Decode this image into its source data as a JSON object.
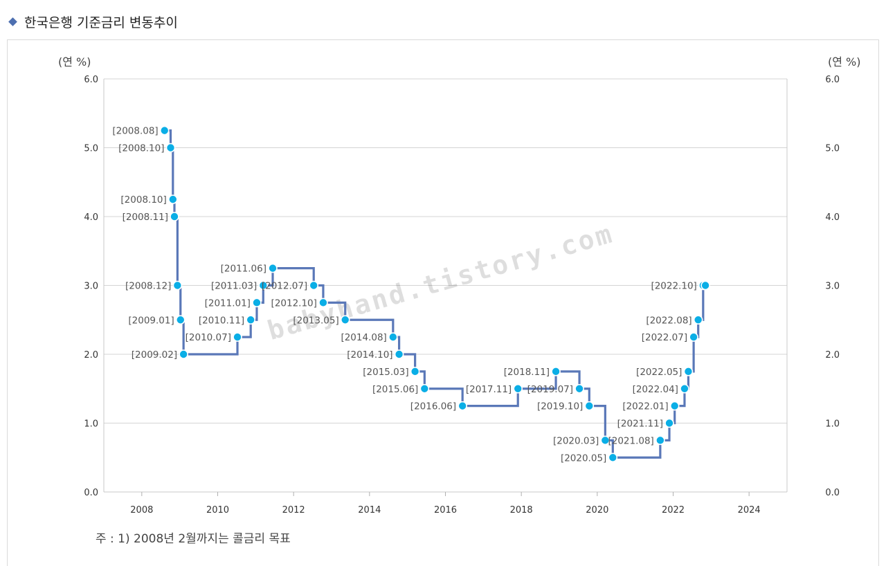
{
  "header": {
    "title": "한국은행 기준금리 변동추이"
  },
  "note": "주 : 1) 2008년 2월까지는 콜금리 목표",
  "watermark": "babyhand.tistory.com",
  "colors": {
    "line": "#5a78b8",
    "marker": "#0aaee6",
    "grid": "#d4d4d4",
    "label": "#555555",
    "accent": "#4d6fb0"
  },
  "chart_data": {
    "type": "line",
    "step": true,
    "y_unit_left": "(연 %)",
    "y_unit_right": "(연 %)",
    "ylim": [
      0,
      6
    ],
    "y_ticks": [
      "0.0",
      "1.0",
      "2.0",
      "3.0",
      "4.0",
      "5.0",
      "6.0"
    ],
    "xlim": [
      2007,
      2025
    ],
    "x_ticks": [
      "2008",
      "2010",
      "2012",
      "2014",
      "2016",
      "2018",
      "2020",
      "2022",
      "2024"
    ],
    "grid": true,
    "series": [
      {
        "points": [
          {
            "x": 2008.6,
            "y": 5.25,
            "label": "[2008.08]"
          },
          {
            "x": 2008.76,
            "y": 5.0,
            "label": "[2008.10]"
          },
          {
            "x": 2008.82,
            "y": 4.25,
            "label": "[2008.10]"
          },
          {
            "x": 2008.86,
            "y": 4.0,
            "label": "[2008.11]"
          },
          {
            "x": 2008.94,
            "y": 3.0,
            "label": "[2008.12]"
          },
          {
            "x": 2009.02,
            "y": 2.5,
            "label": "[2009.01]"
          },
          {
            "x": 2009.1,
            "y": 2.0,
            "label": "[2009.02]"
          },
          {
            "x": 2010.52,
            "y": 2.25,
            "label": "[2010.07]"
          },
          {
            "x": 2010.87,
            "y": 2.5,
            "label": "[2010.11]"
          },
          {
            "x": 2011.03,
            "y": 2.75,
            "label": "[2011.01]"
          },
          {
            "x": 2011.2,
            "y": 3.0,
            "label": "[2011.03]"
          },
          {
            "x": 2011.45,
            "y": 3.25,
            "label": "[2011.06]"
          },
          {
            "x": 2012.53,
            "y": 3.0,
            "label": "[2012.07]"
          },
          {
            "x": 2012.78,
            "y": 2.75,
            "label": "[2012.10]"
          },
          {
            "x": 2013.36,
            "y": 2.5,
            "label": "[2013.05]"
          },
          {
            "x": 2014.62,
            "y": 2.25,
            "label": "[2014.08]"
          },
          {
            "x": 2014.78,
            "y": 2.0,
            "label": "[2014.10]"
          },
          {
            "x": 2015.2,
            "y": 1.75,
            "label": "[2015.03]"
          },
          {
            "x": 2015.45,
            "y": 1.5,
            "label": "[2015.06]"
          },
          {
            "x": 2016.45,
            "y": 1.25,
            "label": "[2016.06]"
          },
          {
            "x": 2017.91,
            "y": 1.5,
            "label": "[2017.11]"
          },
          {
            "x": 2018.91,
            "y": 1.75,
            "label": "[2018.11]"
          },
          {
            "x": 2019.53,
            "y": 1.5,
            "label": "[2019.07]"
          },
          {
            "x": 2019.79,
            "y": 1.25,
            "label": "[2019.10]"
          },
          {
            "x": 2020.21,
            "y": 0.75,
            "label": "[2020.03]"
          },
          {
            "x": 2020.41,
            "y": 0.5,
            "label": "[2020.05]"
          },
          {
            "x": 2021.66,
            "y": 0.75,
            "label": "[2021.08]"
          },
          {
            "x": 2021.9,
            "y": 1.0,
            "label": "[2021.11]"
          },
          {
            "x": 2022.04,
            "y": 1.25,
            "label": "[2022.01]"
          },
          {
            "x": 2022.3,
            "y": 1.5,
            "label": "[2022.04]"
          },
          {
            "x": 2022.4,
            "y": 1.75,
            "label": "[2022.05]"
          },
          {
            "x": 2022.54,
            "y": 2.25,
            "label": "[2022.07]"
          },
          {
            "x": 2022.66,
            "y": 2.5,
            "label": "[2022.08]"
          },
          {
            "x": 2022.79,
            "y": 3.0,
            "label": "[2022.10]"
          },
          {
            "x": 2022.85,
            "y": 3.0,
            "label": ""
          }
        ]
      }
    ]
  }
}
